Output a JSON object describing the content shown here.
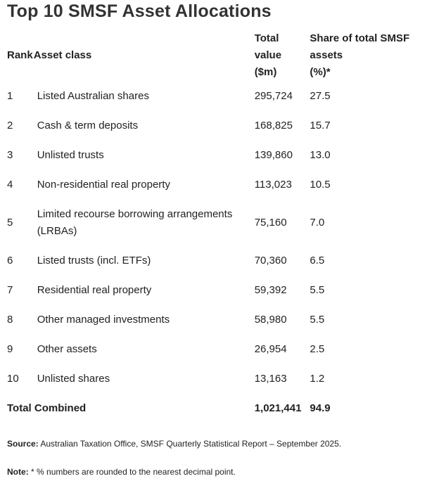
{
  "title": "Top 10 SMSF Asset Allocations",
  "table": {
    "headers": {
      "rank": "Rank",
      "asset_class": "Asset class",
      "total_value": [
        "Total",
        "value",
        "($m)"
      ],
      "share": [
        "Share of total SMSF",
        "assets",
        "(%)*"
      ]
    },
    "rows": [
      {
        "rank": "1",
        "asset": "Listed Australian shares",
        "value": "295,724",
        "share": "27.5"
      },
      {
        "rank": "2",
        "asset": "Cash & term deposits",
        "value": "168,825",
        "share": "15.7"
      },
      {
        "rank": "3",
        "asset": "Unlisted trusts",
        "value": "139,860",
        "share": "13.0"
      },
      {
        "rank": "4",
        "asset": "Non-residential real property",
        "value": "113,023",
        "share": "10.5"
      },
      {
        "rank": "5",
        "asset": "Limited recourse borrowing arrangements (LRBAs)",
        "value": "75,160",
        "share": "7.0"
      },
      {
        "rank": "6",
        "asset": "Listed trusts (incl. ETFs)",
        "value": "70,360",
        "share": "6.5"
      },
      {
        "rank": "7",
        "asset": "Residential real property",
        "value": "59,392",
        "share": "5.5"
      },
      {
        "rank": "8",
        "asset": "Other managed investments",
        "value": "58,980",
        "share": "5.5"
      },
      {
        "rank": "9",
        "asset": "Other assets",
        "value": "26,954",
        "share": "2.5"
      },
      {
        "rank": "10",
        "asset": "Unlisted shares",
        "value": "13,163",
        "share": "1.2"
      }
    ],
    "total": {
      "label": "Total Combined",
      "value": "1,021,441",
      "share": "94.9"
    }
  },
  "source": {
    "label": "Source:",
    "text": " Australian Taxation Office, SMSF Quarterly Statistical Report – September 2025."
  },
  "note": {
    "label": "Note:",
    "text": " * % numbers are rounded to the nearest decimal point."
  }
}
